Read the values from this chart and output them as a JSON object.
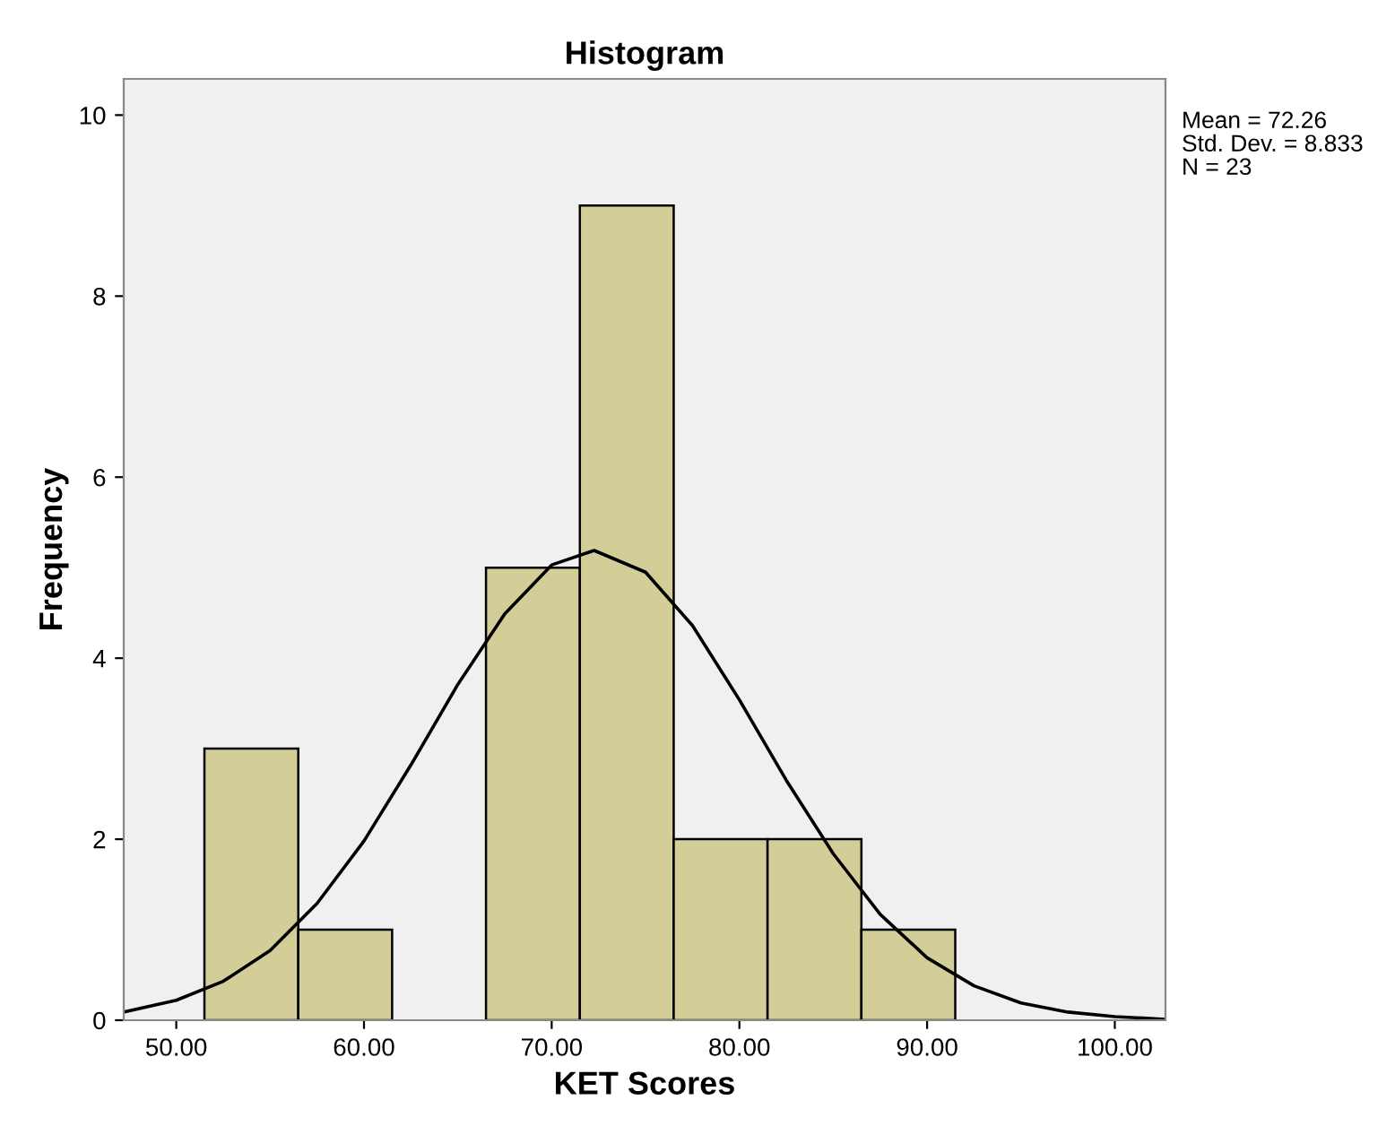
{
  "chart_data": {
    "type": "histogram",
    "title": "Histogram",
    "xlabel": "KET Scores",
    "ylabel": "Frequency",
    "bins": [
      51.5,
      56.5,
      61.5,
      66.5,
      71.5,
      76.5,
      81.5,
      86.5,
      91.5
    ],
    "values": [
      3,
      1,
      0,
      5,
      9,
      2,
      2,
      1
    ],
    "colors": [
      "#d3ce97",
      "#d3ce97",
      "#d3ce97",
      "#d3ce97",
      "#d3ce97",
      "#d3ce97",
      "#d3ce97",
      "#d3ce97"
    ],
    "series": [
      {
        "type": "line",
        "color": "#000000",
        "x": [
          47.2,
          50,
          52.5,
          55,
          57.5,
          60,
          62.5,
          65,
          67.5,
          70,
          72.26,
          75,
          77.5,
          80,
          82.5,
          85,
          87.5,
          90,
          92.5,
          95,
          97.5,
          100,
          102.7
        ],
        "values": [
          0.09,
          0.22,
          0.43,
          0.77,
          1.29,
          1.98,
          2.82,
          3.71,
          4.49,
          5.03,
          5.19,
          4.95,
          4.36,
          3.54,
          2.65,
          1.84,
          1.17,
          0.69,
          0.38,
          0.19,
          0.09,
          0.04,
          0.01
        ]
      }
    ],
    "xlim": [
      47.2,
      102.7
    ],
    "ylim": [
      0,
      10.4
    ],
    "xticks": [
      {
        "value": 50,
        "label": "50.00"
      },
      {
        "value": 60,
        "label": "60.00"
      },
      {
        "value": 70,
        "label": "70.00"
      },
      {
        "value": 80,
        "label": "80.00"
      },
      {
        "value": 90,
        "label": "90.00"
      },
      {
        "value": 100,
        "label": "100.00"
      }
    ],
    "yticks": [
      0,
      2,
      4,
      6,
      8,
      10
    ],
    "grid": false,
    "legend": false,
    "annotations": [
      "Mean = 72.26",
      "Std. Dev. = 8.833",
      "N = 23"
    ]
  }
}
